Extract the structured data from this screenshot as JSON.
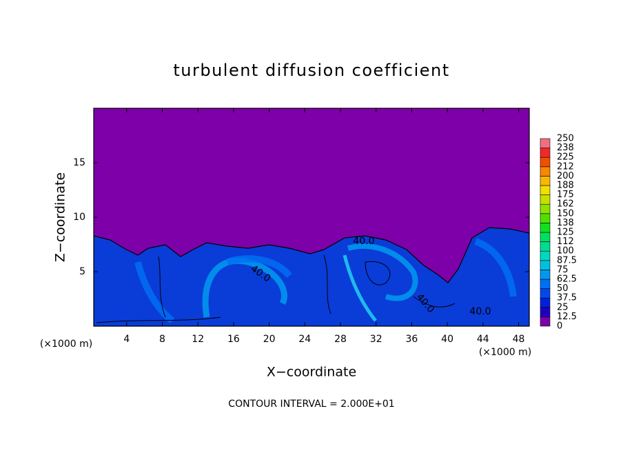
{
  "chart_data": {
    "type": "contour",
    "title": "turbulent diffusion coefficient",
    "xlabel": "X−coordinate",
    "ylabel": "Z−coordinate",
    "x_unit": "(×1000 m)",
    "y_unit": "(×1000 m)",
    "footer": "CONTOUR INTERVAL = 2.000E+01",
    "xlim": [
      0.3,
      49.2
    ],
    "ylim": [
      0,
      20
    ],
    "xticks": [
      4,
      8,
      12,
      16,
      20,
      24,
      28,
      32,
      36,
      40,
      44,
      48
    ],
    "yticks": [
      5,
      10,
      15
    ],
    "annotations": [
      "40.0",
      "40.0",
      "40.0",
      "40.0"
    ],
    "colorbar": {
      "levels": [
        0,
        12.5,
        25,
        37.5,
        50,
        62.5,
        75,
        87.5,
        100,
        112,
        125,
        138,
        150,
        162,
        175,
        188,
        200,
        212,
        225,
        238,
        250
      ],
      "colors": [
        "#7d00a8",
        "#2000c0",
        "#0020dc",
        "#0048ec",
        "#0070f4",
        "#0098f0",
        "#00c0e0",
        "#00d8c0",
        "#00dc90",
        "#00e060",
        "#10e020",
        "#50e000",
        "#90e000",
        "#c8e000",
        "#f0e000",
        "#f8b800",
        "#f88800",
        "#f05000",
        "#f02828",
        "#f07080"
      ]
    }
  }
}
